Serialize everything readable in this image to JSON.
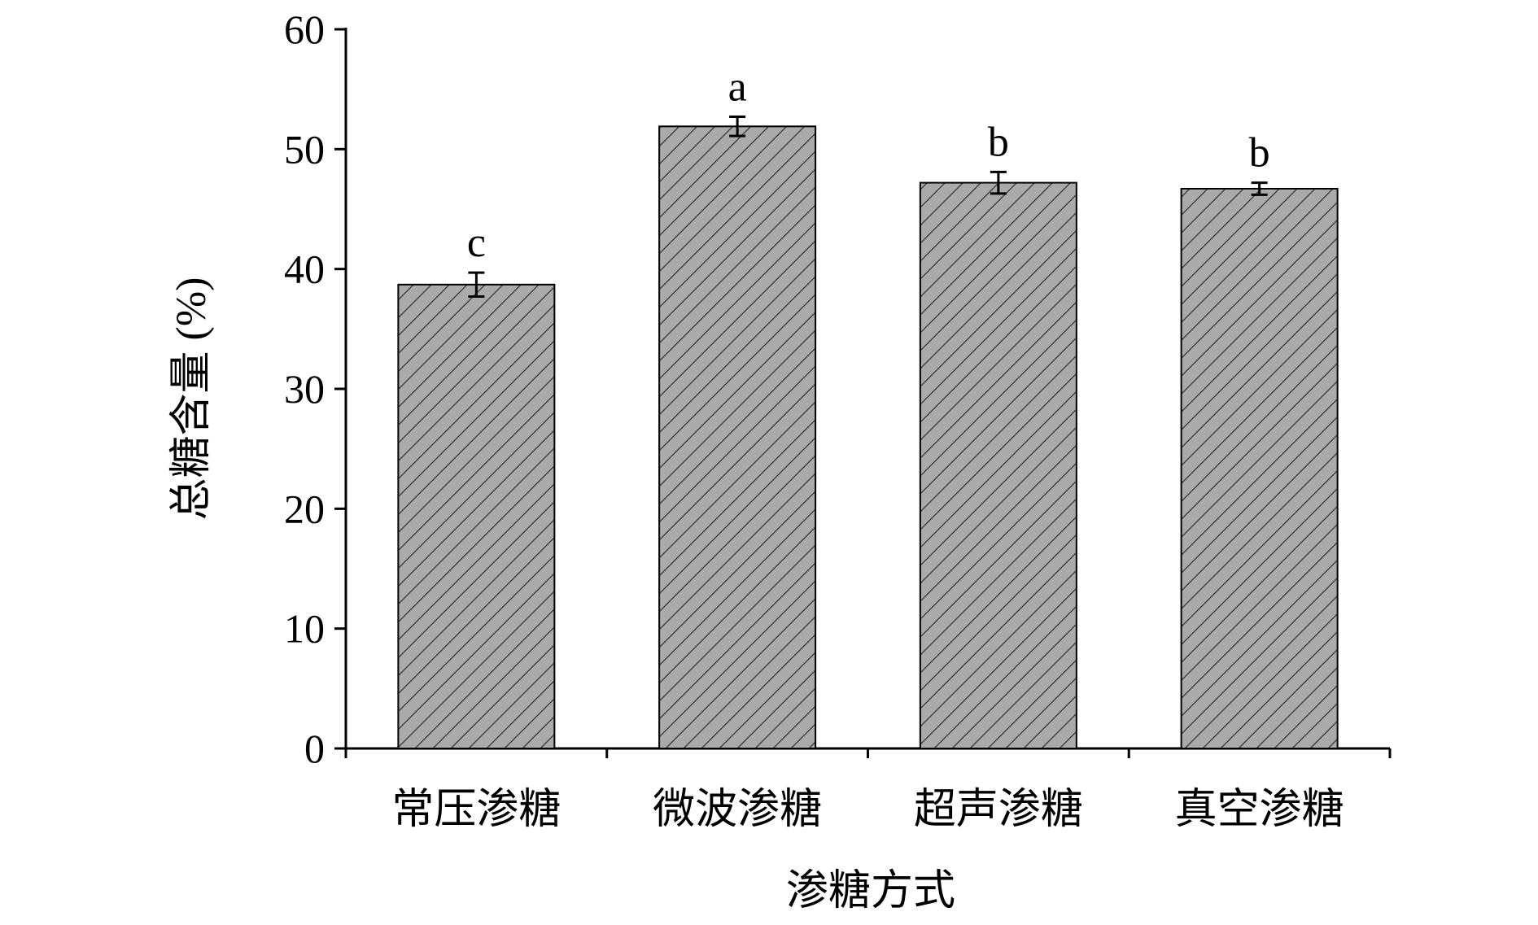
{
  "chart_data": {
    "type": "bar",
    "title": "",
    "xlabel": "渗糖方式",
    "ylabel": "总糖含量 (%)",
    "categories": [
      "常压渗糖",
      "微波渗糖",
      "超声渗糖",
      "真空渗糖"
    ],
    "values": [
      38.7,
      51.9,
      47.2,
      46.7
    ],
    "errors": [
      1.0,
      0.8,
      0.9,
      0.5
    ],
    "significance": [
      "c",
      "a",
      "b",
      "b"
    ],
    "ylim": [
      0,
      60
    ],
    "yticks": [
      0,
      10,
      20,
      30,
      40,
      50,
      60
    ],
    "grid": false,
    "legend": "none",
    "colors": {
      "bar_fill": "#aaaaaa",
      "hatch": "#333333",
      "axis": "#000000"
    }
  }
}
